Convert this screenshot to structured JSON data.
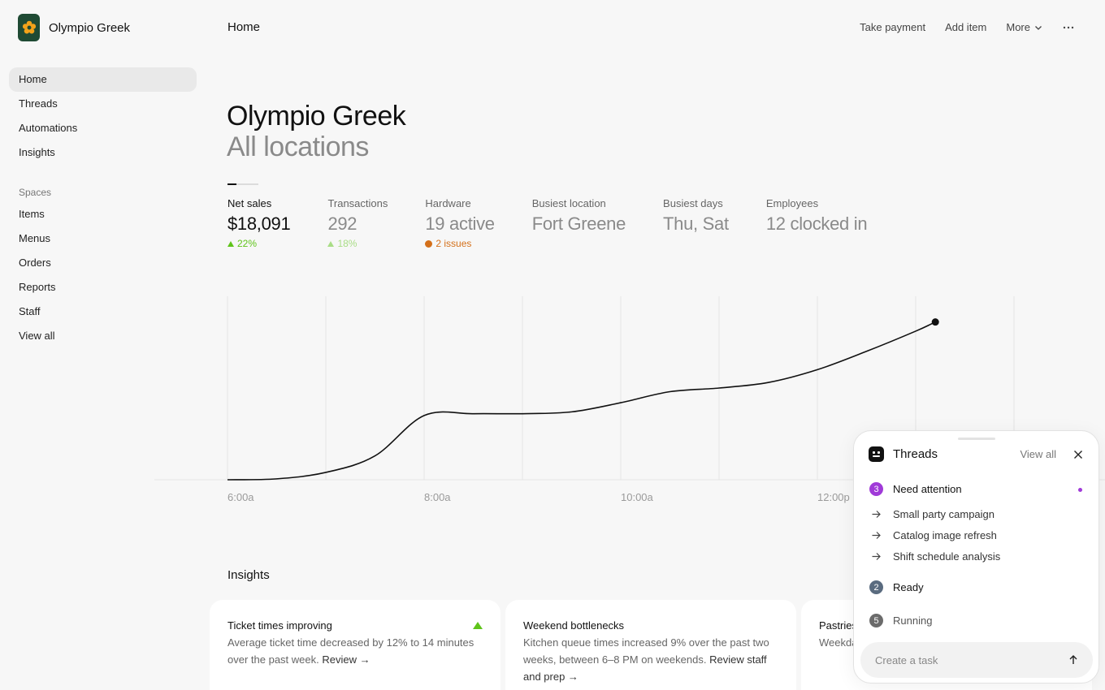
{
  "brand": {
    "name": "Olympio Greek"
  },
  "sidebar": {
    "primary": [
      {
        "label": "Home"
      },
      {
        "label": "Threads"
      },
      {
        "label": "Automations"
      },
      {
        "label": "Insights"
      }
    ],
    "spaces_label": "Spaces",
    "spaces": [
      {
        "label": "Items"
      },
      {
        "label": "Menus"
      },
      {
        "label": "Orders"
      },
      {
        "label": "Reports"
      },
      {
        "label": "Staff"
      },
      {
        "label": "View all"
      }
    ]
  },
  "topbar": {
    "page_title": "Home",
    "take_payment": "Take payment",
    "add_item": "Add item",
    "more": "More"
  },
  "header": {
    "title": "Olympio Greek",
    "subtitle": "All locations"
  },
  "metrics": [
    {
      "label": "Net sales",
      "value": "$18,091",
      "sub": "22%",
      "sub_color": "#5fc41a"
    },
    {
      "label": "Transactions",
      "value": "292",
      "sub": "18%",
      "sub_color": "#a9dd86"
    },
    {
      "label": "Hardware",
      "value": "19 active",
      "sub": "2 issues",
      "sub_color": "#d4701a"
    },
    {
      "label": "Busiest location",
      "value": "Fort Greene"
    },
    {
      "label": "Busiest days",
      "value": "Thu, Sat"
    },
    {
      "label": "Employees",
      "value": "12 clocked in"
    }
  ],
  "chart_data": {
    "type": "line",
    "x_ticks": [
      "6:00a",
      "8:00a",
      "10:00a",
      "12:00p"
    ],
    "series": [
      {
        "x": [
          0,
          0.5,
          1,
          1.5,
          2,
          2.5,
          3,
          3.5,
          4,
          4.5,
          5,
          5.5,
          6,
          6.5,
          7,
          7.2
        ],
        "values": [
          0,
          0.5,
          4,
          13,
          35,
          36,
          36,
          37,
          42,
          48,
          50,
          53,
          60,
          70,
          81,
          86
        ]
      }
    ],
    "ylim": [
      0,
      100
    ],
    "grid": "vertical"
  },
  "insights": {
    "title": "Insights",
    "cards": [
      {
        "title": "Ticket times improving",
        "body": "Average ticket time decreased by 12% to 14 minutes over the past week.",
        "link": "Review →"
      },
      {
        "title": "Weekend bottlenecks",
        "body": "Kitchen queue times increased 9% over the past two weeks, between 6–8 PM on weekends.",
        "link": "Review staff and prep →"
      },
      {
        "title": "Pastries",
        "body": "Weekday ... of the r... pastries"
      }
    ]
  },
  "threads": {
    "title": "Threads",
    "view_all": "View all",
    "groups": [
      {
        "count": "3",
        "label": "Need attention",
        "color": "#a03ad8"
      },
      {
        "count": "2",
        "label": "Ready",
        "color": "#5a6b7f"
      },
      {
        "count": "5",
        "label": "Running",
        "color": "#6b6b6b"
      }
    ],
    "items": [
      {
        "label": "Small party campaign"
      },
      {
        "label": "Catalog image refresh"
      },
      {
        "label": "Shift schedule analysis"
      }
    ],
    "task_placeholder": "Create a task"
  }
}
